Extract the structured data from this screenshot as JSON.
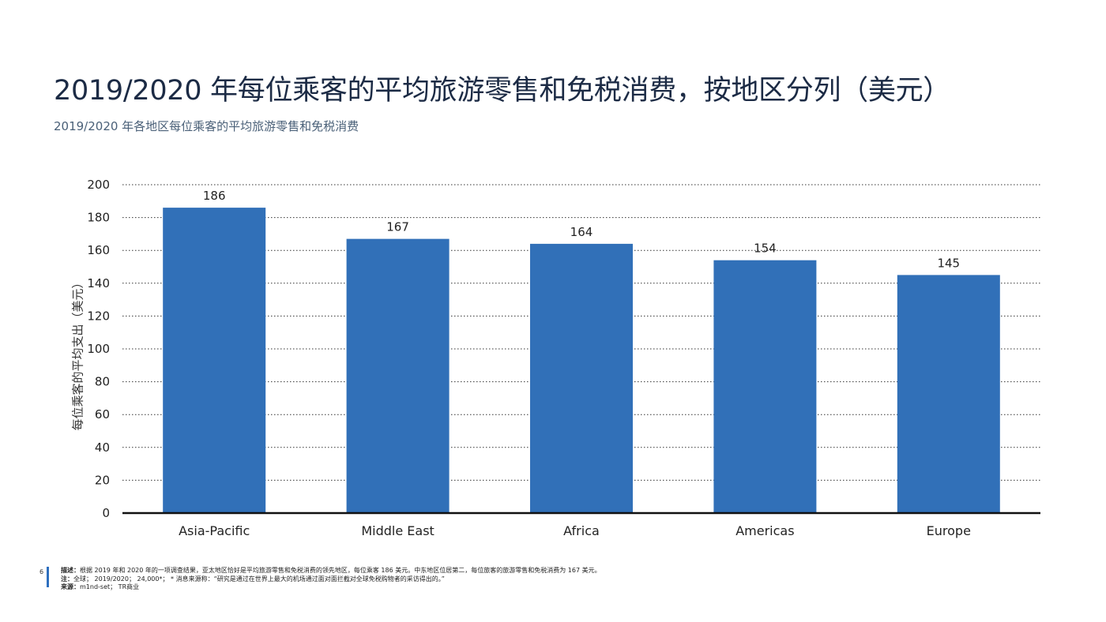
{
  "header": {
    "title": "2019/2020 年每位乘客的平均旅游零售和免税消费，按地区分列（美元）",
    "subtitle": "2019/2020 年各地区每位乘客的平均旅游零售和免税消费"
  },
  "chart_data": {
    "type": "bar",
    "title": "",
    "xlabel": "",
    "ylabel": "每位乘客的平均支出（美元）",
    "categories": [
      "Asia-Pacific",
      "Middle East",
      "Africa",
      "Americas",
      "Europe"
    ],
    "values": [
      186,
      167,
      164,
      154,
      145
    ],
    "data_labels": [
      "186",
      "167",
      "164",
      "154",
      "145"
    ],
    "ylim": [
      0,
      200
    ],
    "yticks": [
      0,
      20,
      40,
      60,
      80,
      100,
      120,
      140,
      160,
      180,
      200
    ],
    "grid": "horizontal-dotted",
    "bar_color": "#3170b8"
  },
  "footer": {
    "page_number": "6",
    "description_label": "描述：",
    "description": "根据 2019 年和 2020 年的一项调查结果，亚太地区恰好是平均旅游零售和免税消费的领先地区，每位乘客 186 美元。中东地区位居第二，每位旅客的旅游零售和免税消费为 167 美元。",
    "note_label": "注：",
    "note": "全球；  2019/2020；  24,000*；  * 消息来源称：“研究是通过在世界上最大的机场通过面对面拦截对全球免税购物者的采访得出的。”",
    "source_label": "来源：",
    "source": "m1nd-set；  TR商业"
  },
  "colors": {
    "accent": "#2e6fbf",
    "title": "#1c2b45"
  }
}
